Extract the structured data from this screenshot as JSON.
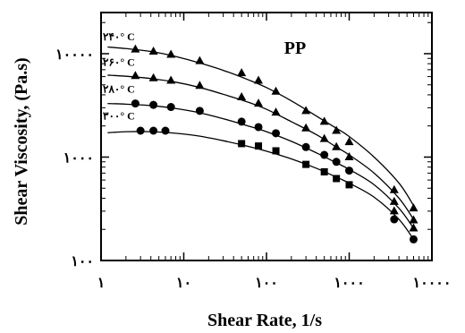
{
  "chart_data": {
    "type": "scatter",
    "title": "PP",
    "xlabel": "Shear Rate, 1/s",
    "ylabel": "Shear Viscosity, (Pa.s)",
    "x_scale": "log",
    "y_scale": "log",
    "xlim": [
      1,
      10000
    ],
    "ylim": [
      100,
      25000
    ],
    "x_ticks": [
      1,
      10,
      100,
      1000,
      10000
    ],
    "x_tick_labels": [
      "۱",
      "۱۰",
      "۱۰۰",
      "۱۰۰۰",
      "۱۰۰۰۰"
    ],
    "y_ticks": [
      100,
      1000,
      10000
    ],
    "y_tick_labels": [
      "۱۰۰",
      "۱۰۰۰",
      "۱۰۰۰۰"
    ],
    "grid": false,
    "legend": "none",
    "series": [
      {
        "name": "۲۴۰° C",
        "marker": "triangle",
        "x": [
          2.6,
          4.3,
          7.0,
          15.6,
          50,
          80,
          130,
          300,
          500,
          700,
          1000,
          3500,
          6000
        ],
        "y": [
          11000,
          10500,
          9800,
          8500,
          6500,
          5500,
          4300,
          2800,
          2200,
          1800,
          1400,
          480,
          320
        ],
        "fit_x": [
          1.2,
          2,
          4,
          8,
          15,
          30,
          60,
          100,
          200,
          400,
          700,
          1000,
          2000,
          4000,
          6000
        ],
        "fit_y": [
          11600,
          11200,
          10500,
          9400,
          8200,
          6900,
          5600,
          4700,
          3500,
          2500,
          1900,
          1580,
          1000,
          560,
          340
        ]
      },
      {
        "name": "۲۶۰° C",
        "marker": "triangle",
        "x": [
          2.6,
          4.3,
          7.0,
          15.6,
          50,
          80,
          130,
          300,
          500,
          700,
          1000,
          3500,
          6000
        ],
        "y": [
          6100,
          5800,
          5500,
          4900,
          3800,
          3300,
          2700,
          1900,
          1500,
          1250,
          1000,
          370,
          245
        ],
        "fit_x": [
          1.2,
          2,
          4,
          8,
          15,
          30,
          60,
          100,
          200,
          400,
          700,
          1000,
          2000,
          4000,
          6000
        ],
        "fit_y": [
          6200,
          6050,
          5750,
          5300,
          4750,
          4050,
          3400,
          2900,
          2200,
          1650,
          1250,
          1050,
          700,
          400,
          250
        ]
      },
      {
        "name": "۲۸۰° C",
        "marker": "circle",
        "x": [
          2.6,
          4.3,
          7.0,
          15.6,
          50,
          80,
          130,
          300,
          500,
          700,
          1000,
          3500,
          6000
        ],
        "y": [
          3300,
          3200,
          3050,
          2800,
          2200,
          1950,
          1700,
          1250,
          1050,
          900,
          740,
          300,
          205
        ],
        "fit_x": [
          1.2,
          2,
          4,
          8,
          15,
          30,
          60,
          100,
          200,
          400,
          700,
          1000,
          2000,
          4000,
          6000
        ],
        "fit_y": [
          3300,
          3250,
          3150,
          2950,
          2700,
          2350,
          2000,
          1760,
          1420,
          1100,
          880,
          760,
          540,
          320,
          205
        ]
      },
      {
        "name": "۳۰۰° C",
        "marker": "square",
        "x": [
          3,
          4.3,
          6,
          50,
          80,
          130,
          300,
          500,
          700,
          1000,
          3500,
          6000
        ],
        "y": [
          1800,
          1800,
          1800,
          1350,
          1280,
          1150,
          850,
          720,
          620,
          540,
          250,
          160
        ],
        "fit_x": [
          1.2,
          2,
          4,
          8,
          15,
          30,
          60,
          100,
          200,
          400,
          700,
          1000,
          2000,
          4000,
          6000
        ],
        "fit_y": [
          1720,
          1760,
          1760,
          1700,
          1600,
          1440,
          1270,
          1140,
          960,
          780,
          640,
          560,
          410,
          250,
          160
        ]
      }
    ],
    "series_markers_override": {
      "2": [
        2.6,
        4.3,
        7.0
      ],
      "3": [
        3,
        4.3,
        6
      ]
    }
  }
}
